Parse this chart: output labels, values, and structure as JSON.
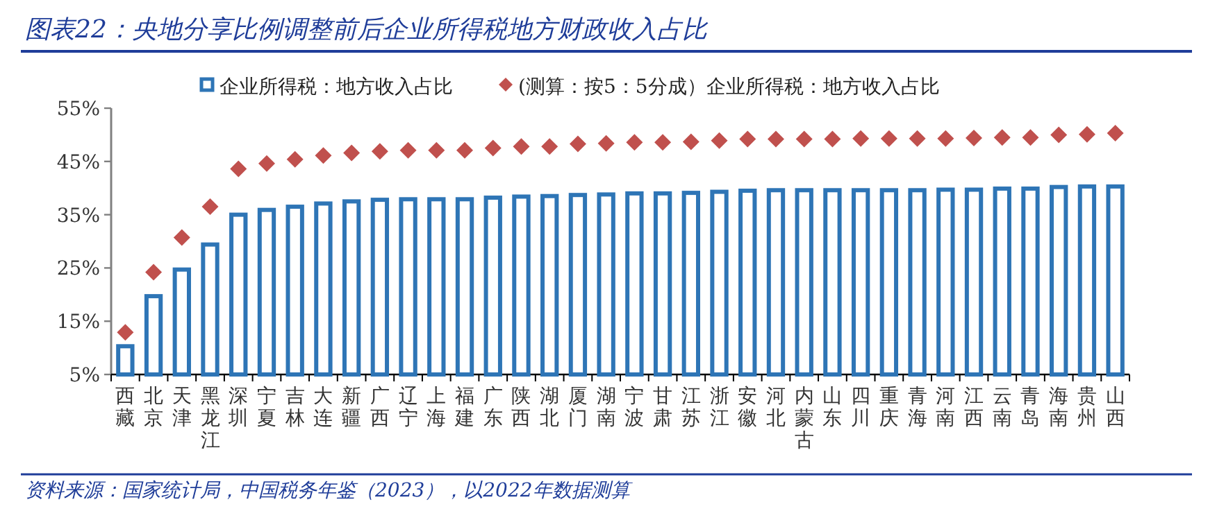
{
  "chart_data": {
    "type": "bar",
    "title": "图表22：央地分享比例调整前后企业所得税地方财政收入占比",
    "categories": [
      "西藏",
      "北京",
      "天津",
      "黑龙江",
      "深圳",
      "宁夏",
      "吉林",
      "大连",
      "新疆",
      "广西",
      "辽宁",
      "上海",
      "福建",
      "广东",
      "陕西",
      "湖北",
      "厦门",
      "湖南",
      "宁波",
      "甘肃",
      "江苏",
      "浙江",
      "安徽",
      "河北",
      "内蒙古",
      "山东",
      "四川",
      "重庆",
      "青海",
      "河南",
      "江西",
      "云南",
      "青岛",
      "海南",
      "贵州",
      "山西"
    ],
    "series": [
      {
        "name": "企业所得税：地方收入占比",
        "color": "#2e75b6",
        "values": [
          10.3,
          19.7,
          24.7,
          29.4,
          35.0,
          35.9,
          36.5,
          37.1,
          37.5,
          37.8,
          37.9,
          37.9,
          37.9,
          38.2,
          38.4,
          38.5,
          38.7,
          38.8,
          39.0,
          39.0,
          39.1,
          39.3,
          39.5,
          39.6,
          39.6,
          39.6,
          39.6,
          39.6,
          39.6,
          39.7,
          39.7,
          39.9,
          39.9,
          40.2,
          40.3,
          40.3
        ]
      },
      {
        "name": "(测算：按5：5分成）企业所得税：地方收入占比",
        "type": "scatter",
        "marker": "diamond",
        "color": "#c0504d",
        "values": [
          12.9,
          24.2,
          30.7,
          36.5,
          43.6,
          44.6,
          45.4,
          46.1,
          46.6,
          46.9,
          47.1,
          47.1,
          47.1,
          47.5,
          47.8,
          47.8,
          48.3,
          48.4,
          48.6,
          48.6,
          48.7,
          48.9,
          49.2,
          49.2,
          49.2,
          49.2,
          49.3,
          49.3,
          49.3,
          49.3,
          49.4,
          49.5,
          49.5,
          50.0,
          50.1,
          50.3
        ]
      }
    ],
    "ylim": [
      5,
      55
    ],
    "yticks": [
      {
        "value": 5,
        "label": "5%"
      },
      {
        "value": 15,
        "label": "15%"
      },
      {
        "value": 25,
        "label": "25%"
      },
      {
        "value": 35,
        "label": "35%"
      },
      {
        "value": 45,
        "label": "45%"
      },
      {
        "value": 55,
        "label": "55%"
      }
    ],
    "legend": "top",
    "annotations": [
      "资料来源：国家统计局，中国税务年鉴（2023），以2022年数据测算"
    ]
  }
}
